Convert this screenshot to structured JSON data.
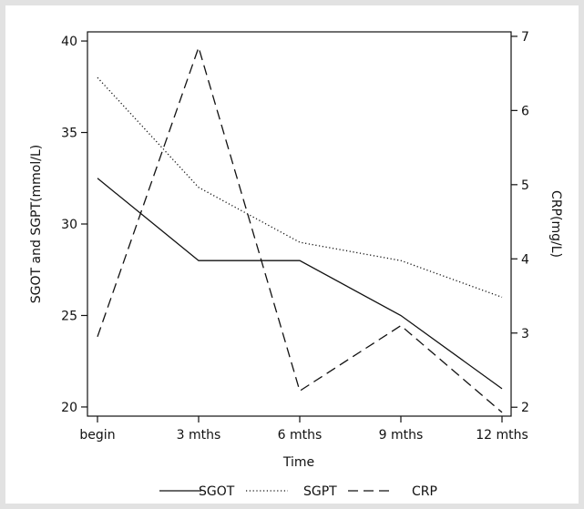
{
  "chart_data": {
    "type": "line",
    "categories": [
      "begin",
      "3 mths",
      "6 mths",
      "9 mths",
      "12 mths"
    ],
    "xlabel": "Time",
    "ylabel": "SGOT and SGPT(mmol/L)",
    "y2label": "CRP(mg/L)",
    "ylim": [
      19.5,
      40.5
    ],
    "y2lim": [
      1.88,
      7.06
    ],
    "yticks": [
      20,
      25,
      30,
      35,
      40
    ],
    "y2ticks": [
      2,
      3,
      4,
      5,
      6,
      7
    ],
    "series": [
      {
        "name": "SGOT",
        "axis": "left",
        "style": "solid",
        "values": [
          32.5,
          28.0,
          28.0,
          25.0,
          21.0
        ]
      },
      {
        "name": "SGPT",
        "axis": "left",
        "style": "dotted",
        "values": [
          38.0,
          32.0,
          29.0,
          28.0,
          26.0
        ]
      },
      {
        "name": "CRP",
        "axis": "right",
        "style": "dashed",
        "values": [
          2.95,
          6.85,
          2.22,
          3.1,
          1.93
        ]
      }
    ],
    "legend_position": "bottom",
    "grid": false
  }
}
